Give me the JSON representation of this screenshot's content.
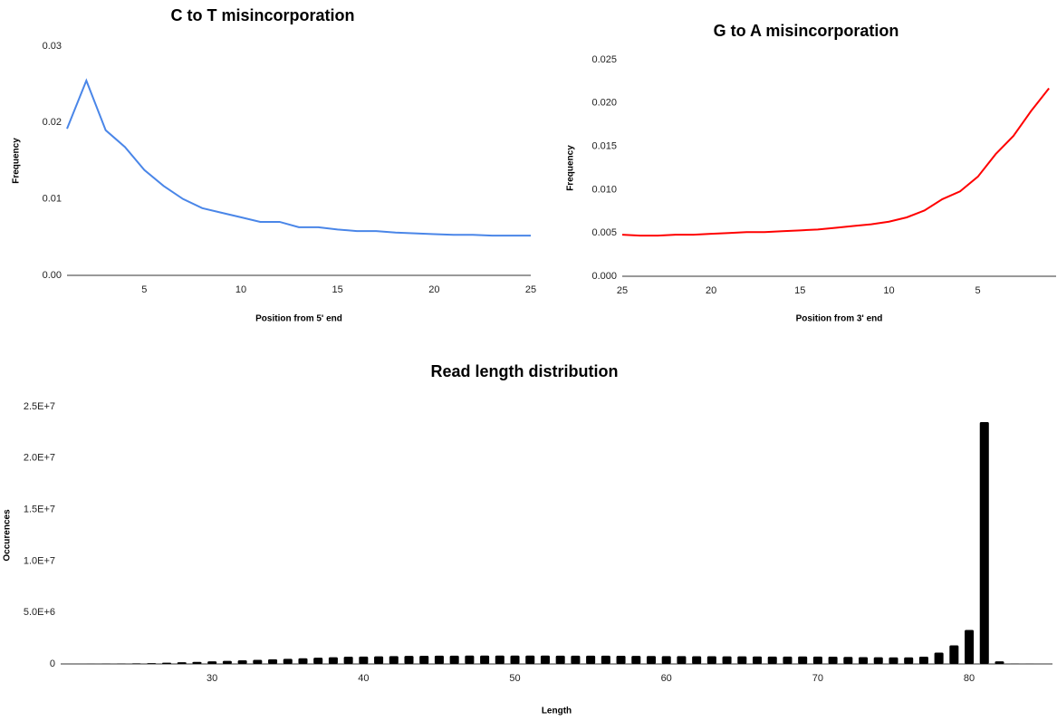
{
  "chart_data": [
    {
      "type": "line",
      "title": "C to T misincorporation",
      "x_label": "Position from 5' end",
      "y_label": "Frequency",
      "x": [
        1,
        2,
        3,
        4,
        5,
        6,
        7,
        8,
        9,
        10,
        11,
        12,
        13,
        14,
        15,
        16,
        17,
        18,
        19,
        20,
        21,
        22,
        23,
        24,
        25
      ],
      "series": [
        {
          "color": "#4a86e8",
          "values": [
            0.0192,
            0.0255,
            0.019,
            0.0168,
            0.0138,
            0.0117,
            0.01,
            0.0088,
            0.0082,
            0.0076,
            0.007,
            0.007,
            0.0063,
            0.0063,
            0.006,
            0.0058,
            0.0058,
            0.0056,
            0.0055,
            0.0054,
            0.0053,
            0.0053,
            0.0052,
            0.0052,
            0.0052
          ]
        }
      ],
      "xlim": [
        1,
        25
      ],
      "xticks": [
        5,
        10,
        15,
        20,
        25
      ],
      "ylim": [
        0,
        0.03
      ],
      "yticks": [
        {
          "value": 0,
          "label": "0.00"
        },
        0.01,
        0.02,
        0.03
      ],
      "grid": false
    },
    {
      "type": "line",
      "title": "G to A misincorporation",
      "x_label": "Position from 3' end",
      "y_label": "Frequency",
      "x": [
        1,
        2,
        3,
        4,
        5,
        6,
        7,
        8,
        9,
        10,
        11,
        12,
        13,
        14,
        15,
        16,
        17,
        18,
        19,
        20,
        21,
        22,
        23,
        24,
        25
      ],
      "series": [
        {
          "color": "#ff0000",
          "values": [
            0.0217,
            0.0191,
            0.0162,
            0.0141,
            0.0115,
            0.0098,
            0.0089,
            0.0076,
            0.0068,
            0.0063,
            0.006,
            0.0058,
            0.0056,
            0.0054,
            0.0053,
            0.0052,
            0.0051,
            0.0051,
            0.005,
            0.0049,
            0.0048,
            0.0048,
            0.0047,
            0.0047,
            0.0048
          ]
        }
      ],
      "xlim": [
        25,
        0.6
      ],
      "xticks": [
        25,
        20,
        15,
        10,
        5
      ],
      "ylim": [
        0,
        0.025
      ],
      "yticks": [
        {
          "value": 0,
          "label": "0.000"
        },
        0.005,
        {
          "value": 0.01,
          "label": "0.010"
        },
        0.015,
        {
          "value": 0.02,
          "label": "0.020"
        },
        0.025
      ],
      "grid": false
    },
    {
      "type": "bar",
      "title": "Read length distribution",
      "x_label": "Length",
      "y_label": "Occurences",
      "x": [
        21,
        22,
        23,
        24,
        25,
        26,
        27,
        28,
        29,
        30,
        31,
        32,
        33,
        34,
        35,
        36,
        37,
        38,
        39,
        40,
        41,
        42,
        43,
        44,
        45,
        46,
        47,
        48,
        49,
        50,
        51,
        52,
        53,
        54,
        55,
        56,
        57,
        58,
        59,
        60,
        61,
        62,
        63,
        64,
        65,
        66,
        67,
        68,
        69,
        70,
        71,
        72,
        73,
        74,
        75,
        76,
        77,
        78,
        79,
        80,
        81,
        82,
        83,
        84,
        85
      ],
      "series": [
        {
          "color": "#000000",
          "values": [
            5000,
            10000,
            20000,
            30000,
            50000,
            80000,
            120000,
            160000,
            200000,
            250000,
            300000,
            350000,
            400000,
            450000,
            500000,
            550000,
            600000,
            650000,
            700000,
            720000,
            740000,
            760000,
            780000,
            790000,
            800000,
            800000,
            810000,
            810000,
            810000,
            810000,
            810000,
            810000,
            800000,
            800000,
            800000,
            800000,
            790000,
            780000,
            770000,
            760000,
            760000,
            750000,
            750000,
            740000,
            740000,
            730000,
            720000,
            720000,
            730000,
            720000,
            700000,
            680000,
            660000,
            650000,
            640000,
            640000,
            700000,
            1100000,
            1800000,
            3300000,
            23500000,
            250000,
            20000,
            10000,
            5000
          ]
        }
      ],
      "xlim": [
        20,
        85.5
      ],
      "xticks": [
        30,
        40,
        50,
        60,
        70,
        80
      ],
      "ylim": [
        0,
        25000000
      ],
      "yticks": [
        0,
        {
          "value": 5000000,
          "label": "5.0E+6"
        },
        {
          "value": 10000000,
          "label": "1.0E+7"
        },
        {
          "value": 15000000,
          "label": "1.5E+7"
        },
        {
          "value": 20000000,
          "label": "2.0E+7"
        },
        {
          "value": 25000000,
          "label": "2.5E+7"
        }
      ],
      "grid": false
    }
  ]
}
